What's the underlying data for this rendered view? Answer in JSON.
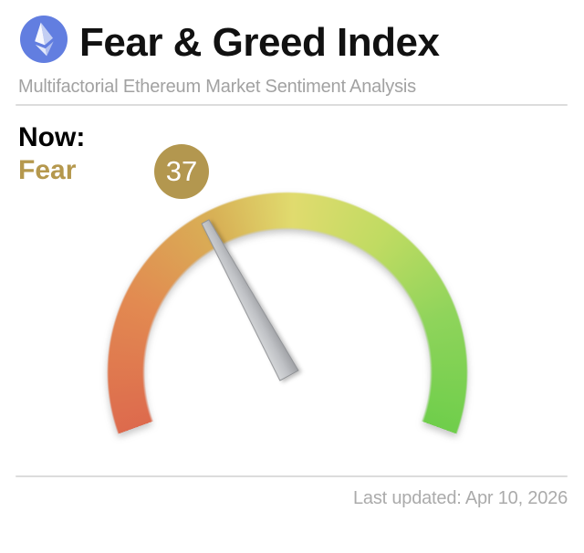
{
  "header": {
    "logo_icon": "ethereum-icon",
    "title": "Fear & Greed Index",
    "subtitle": "Multifactorial Ethereum Market Sentiment Analysis"
  },
  "now": {
    "label": "Now:",
    "classification": "Fear",
    "value_badge": "37"
  },
  "footer": {
    "last_updated": "Last updated: Apr 10, 2026"
  },
  "colors": {
    "logo_bg": "#627ee0",
    "classification_text": "#b5984d",
    "badge_bg": "#b3974f",
    "badge_text": "#ffffff",
    "divider": "#dcdcdc",
    "subtitle_text": "#a2a2a2",
    "footer_text": "#ababab",
    "needle_light": "#d6d8da",
    "needle_mid": "#bfc1c5",
    "needle_dark": "#9c9ea2"
  },
  "chart_data": {
    "type": "gauge",
    "title": "Fear & Greed Index",
    "value": 37,
    "min": 0,
    "max": 100,
    "classification": "Fear",
    "sweep_deg": 220,
    "conic_start_deg": 250,
    "ring_outer_radius_px": 198,
    "ring_thickness_px": 38,
    "color_stops": [
      {
        "deg": 0,
        "color": "#dd6a4d"
      },
      {
        "deg": 45,
        "color": "#e28a51"
      },
      {
        "deg": 85,
        "color": "#d8b156"
      },
      {
        "deg": 112,
        "color": "#e0db6e"
      },
      {
        "deg": 145,
        "color": "#c0db62"
      },
      {
        "deg": 180,
        "color": "#8fd45b"
      },
      {
        "deg": 220,
        "color": "#6fce4b"
      }
    ]
  }
}
